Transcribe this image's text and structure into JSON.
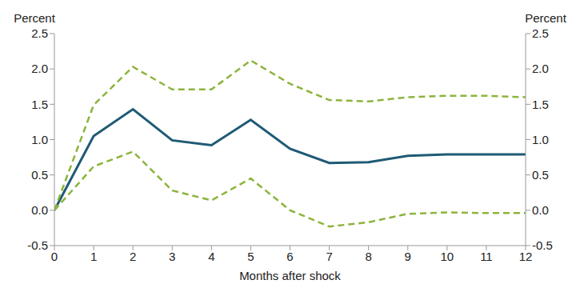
{
  "chart_data": {
    "type": "line",
    "xlabel": "Months after shock",
    "ylabel": "Percent",
    "y2label": "Percent",
    "x": [
      0,
      1,
      2,
      3,
      4,
      5,
      6,
      7,
      8,
      9,
      10,
      11,
      12
    ],
    "xlim": [
      0,
      12
    ],
    "xticks": [
      0,
      1,
      2,
      3,
      4,
      5,
      6,
      7,
      8,
      9,
      10,
      11,
      12
    ],
    "ylim": [
      -0.5,
      2.5
    ],
    "yticks": [
      {
        "value": -0.5,
        "label": "-0.5"
      },
      {
        "value": 0,
        "label": "0.0"
      },
      {
        "value": 0.5,
        "label": "0.5"
      },
      {
        "value": 1,
        "label": "1.0"
      },
      {
        "value": 1.5,
        "label": "1.5"
      },
      {
        "value": 2,
        "label": "2.0"
      },
      {
        "value": 2.5,
        "label": "2.5"
      }
    ],
    "y2lim": [
      -0.5,
      2.5
    ],
    "y2ticks": [
      {
        "value": -0.5,
        "label": "-0.5"
      },
      {
        "value": 0,
        "label": "0.0"
      },
      {
        "value": 0.5,
        "label": "0.5"
      },
      {
        "value": 1,
        "label": "1.0"
      },
      {
        "value": 1.5,
        "label": "1.5"
      },
      {
        "value": 2,
        "label": "2.0"
      },
      {
        "value": 2.5,
        "label": "2.5"
      }
    ],
    "grid": false,
    "series": [
      {
        "color": "#1f5a74",
        "line_style": "solid",
        "values": [
          0,
          1.05,
          1.43,
          0.99,
          0.92,
          1.28,
          0.87,
          0.67,
          0.68,
          0.77,
          0.79,
          0.79,
          0.79
        ]
      },
      {
        "color": "#8cb43c",
        "line_style": "dashed",
        "values": [
          0,
          1.49,
          2.03,
          1.71,
          1.71,
          2.12,
          1.79,
          1.56,
          1.54,
          1.6,
          1.62,
          1.62,
          1.6
        ]
      },
      {
        "color": "#8cb43c",
        "line_style": "dashed",
        "values": [
          0,
          0.62,
          0.83,
          0.28,
          0.14,
          0.45,
          0.0,
          -0.23,
          -0.17,
          -0.05,
          -0.03,
          -0.04,
          -0.04
        ]
      }
    ]
  }
}
